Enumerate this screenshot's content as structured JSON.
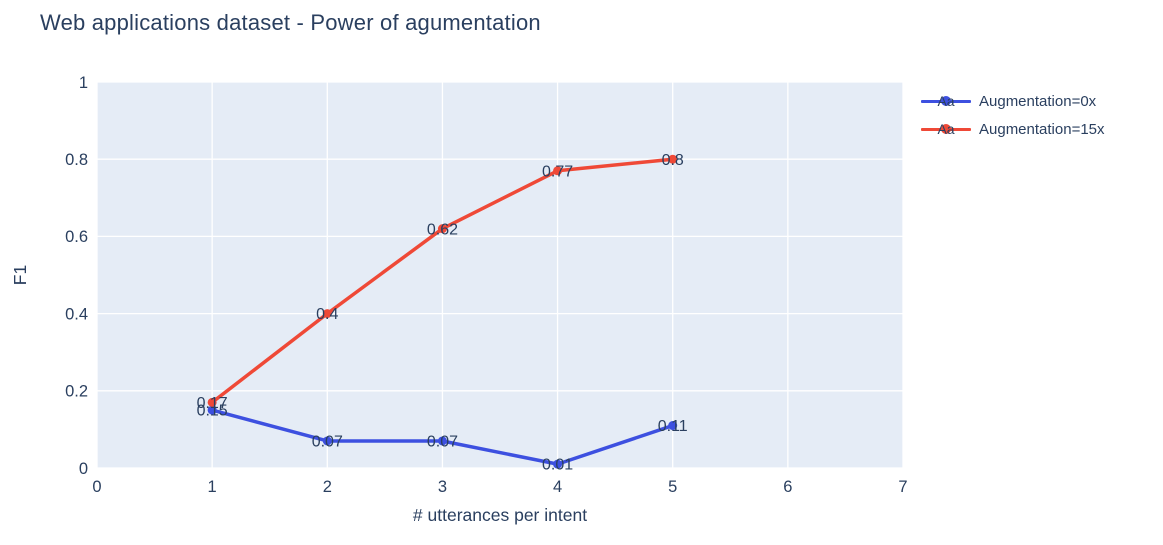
{
  "chart_data": {
    "type": "line",
    "title": "Web applications dataset - Power of agumentation",
    "xlabel": "# utterances per intent",
    "ylabel": "F1",
    "xlim": [
      0,
      7
    ],
    "ylim": [
      0,
      1
    ],
    "xticks": [
      0,
      1,
      2,
      3,
      4,
      5,
      6,
      7
    ],
    "xtick_labels": [
      "0",
      "1",
      "2",
      "3",
      "4",
      "5",
      "6",
      "7"
    ],
    "yticks": [
      0,
      0.2,
      0.4,
      0.6,
      0.8,
      1
    ],
    "ytick_labels": [
      "0",
      "0.2",
      "0.4",
      "0.6",
      "0.8",
      "1"
    ],
    "x": [
      1,
      2,
      3,
      4,
      5
    ],
    "series": [
      {
        "name": "Augmentation=0x",
        "color": "#3D50E0",
        "values": [
          0.15,
          0.07,
          0.07,
          0.01,
          0.11
        ],
        "labels": [
          "0.15",
          "0.07",
          "0.07",
          "0.01",
          "0.11"
        ]
      },
      {
        "name": "Augmentation=15x",
        "color": "#EF4937",
        "values": [
          0.17,
          0.4,
          0.62,
          0.77,
          0.8
        ],
        "labels": [
          "0.17",
          "0.4",
          "0.62",
          "0.77",
          "0.8"
        ]
      }
    ],
    "legend_sample": "Aa",
    "legend_position": "top-right-outside",
    "grid": true,
    "plot_bg": "#E5ECF6",
    "grid_color": "#FFFFFF",
    "text_color": "#2A3F5F"
  }
}
